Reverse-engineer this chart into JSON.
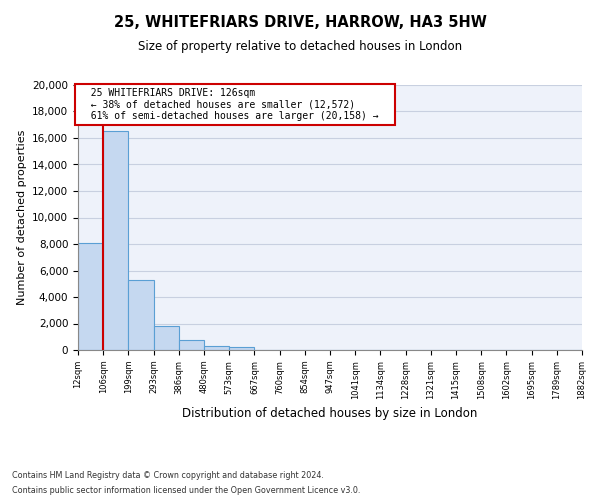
{
  "title": "25, WHITEFRIARS DRIVE, HARROW, HA3 5HW",
  "subtitle": "Size of property relative to detached houses in London",
  "bar_heights": [
    8100,
    16500,
    5300,
    1800,
    750,
    300,
    200,
    0,
    0,
    0,
    0,
    0,
    0,
    0,
    0,
    0,
    0,
    0,
    0,
    0
  ],
  "bin_labels": [
    "12sqm",
    "106sqm",
    "199sqm",
    "293sqm",
    "386sqm",
    "480sqm",
    "573sqm",
    "667sqm",
    "760sqm",
    "854sqm",
    "947sqm",
    "1041sqm",
    "1134sqm",
    "1228sqm",
    "1321sqm",
    "1415sqm",
    "1508sqm",
    "1602sqm",
    "1695sqm",
    "1789sqm",
    "1882sqm"
  ],
  "bar_color": "#c5d8f0",
  "bar_edge_color": "#5a9fd4",
  "bar_edge_width": 0.8,
  "red_line_x": 1,
  "red_line_color": "#cc0000",
  "ylabel": "Number of detached properties",
  "xlabel": "Distribution of detached houses by size in London",
  "ylim": [
    0,
    20000
  ],
  "yticks": [
    0,
    2000,
    4000,
    6000,
    8000,
    10000,
    12000,
    14000,
    16000,
    18000,
    20000
  ],
  "annotation_title": "25 WHITEFRIARS DRIVE: 126sqm",
  "annotation_line1": "← 38% of detached houses are smaller (12,572)",
  "annotation_line2": "61% of semi-detached houses are larger (20,158) →",
  "annotation_box_edge_color": "#cc0000",
  "footer_line1": "Contains HM Land Registry data © Crown copyright and database right 2024.",
  "footer_line2": "Contains public sector information licensed under the Open Government Licence v3.0.",
  "grid_color": "#c8d0e0",
  "bg_color": "#eef2fa"
}
